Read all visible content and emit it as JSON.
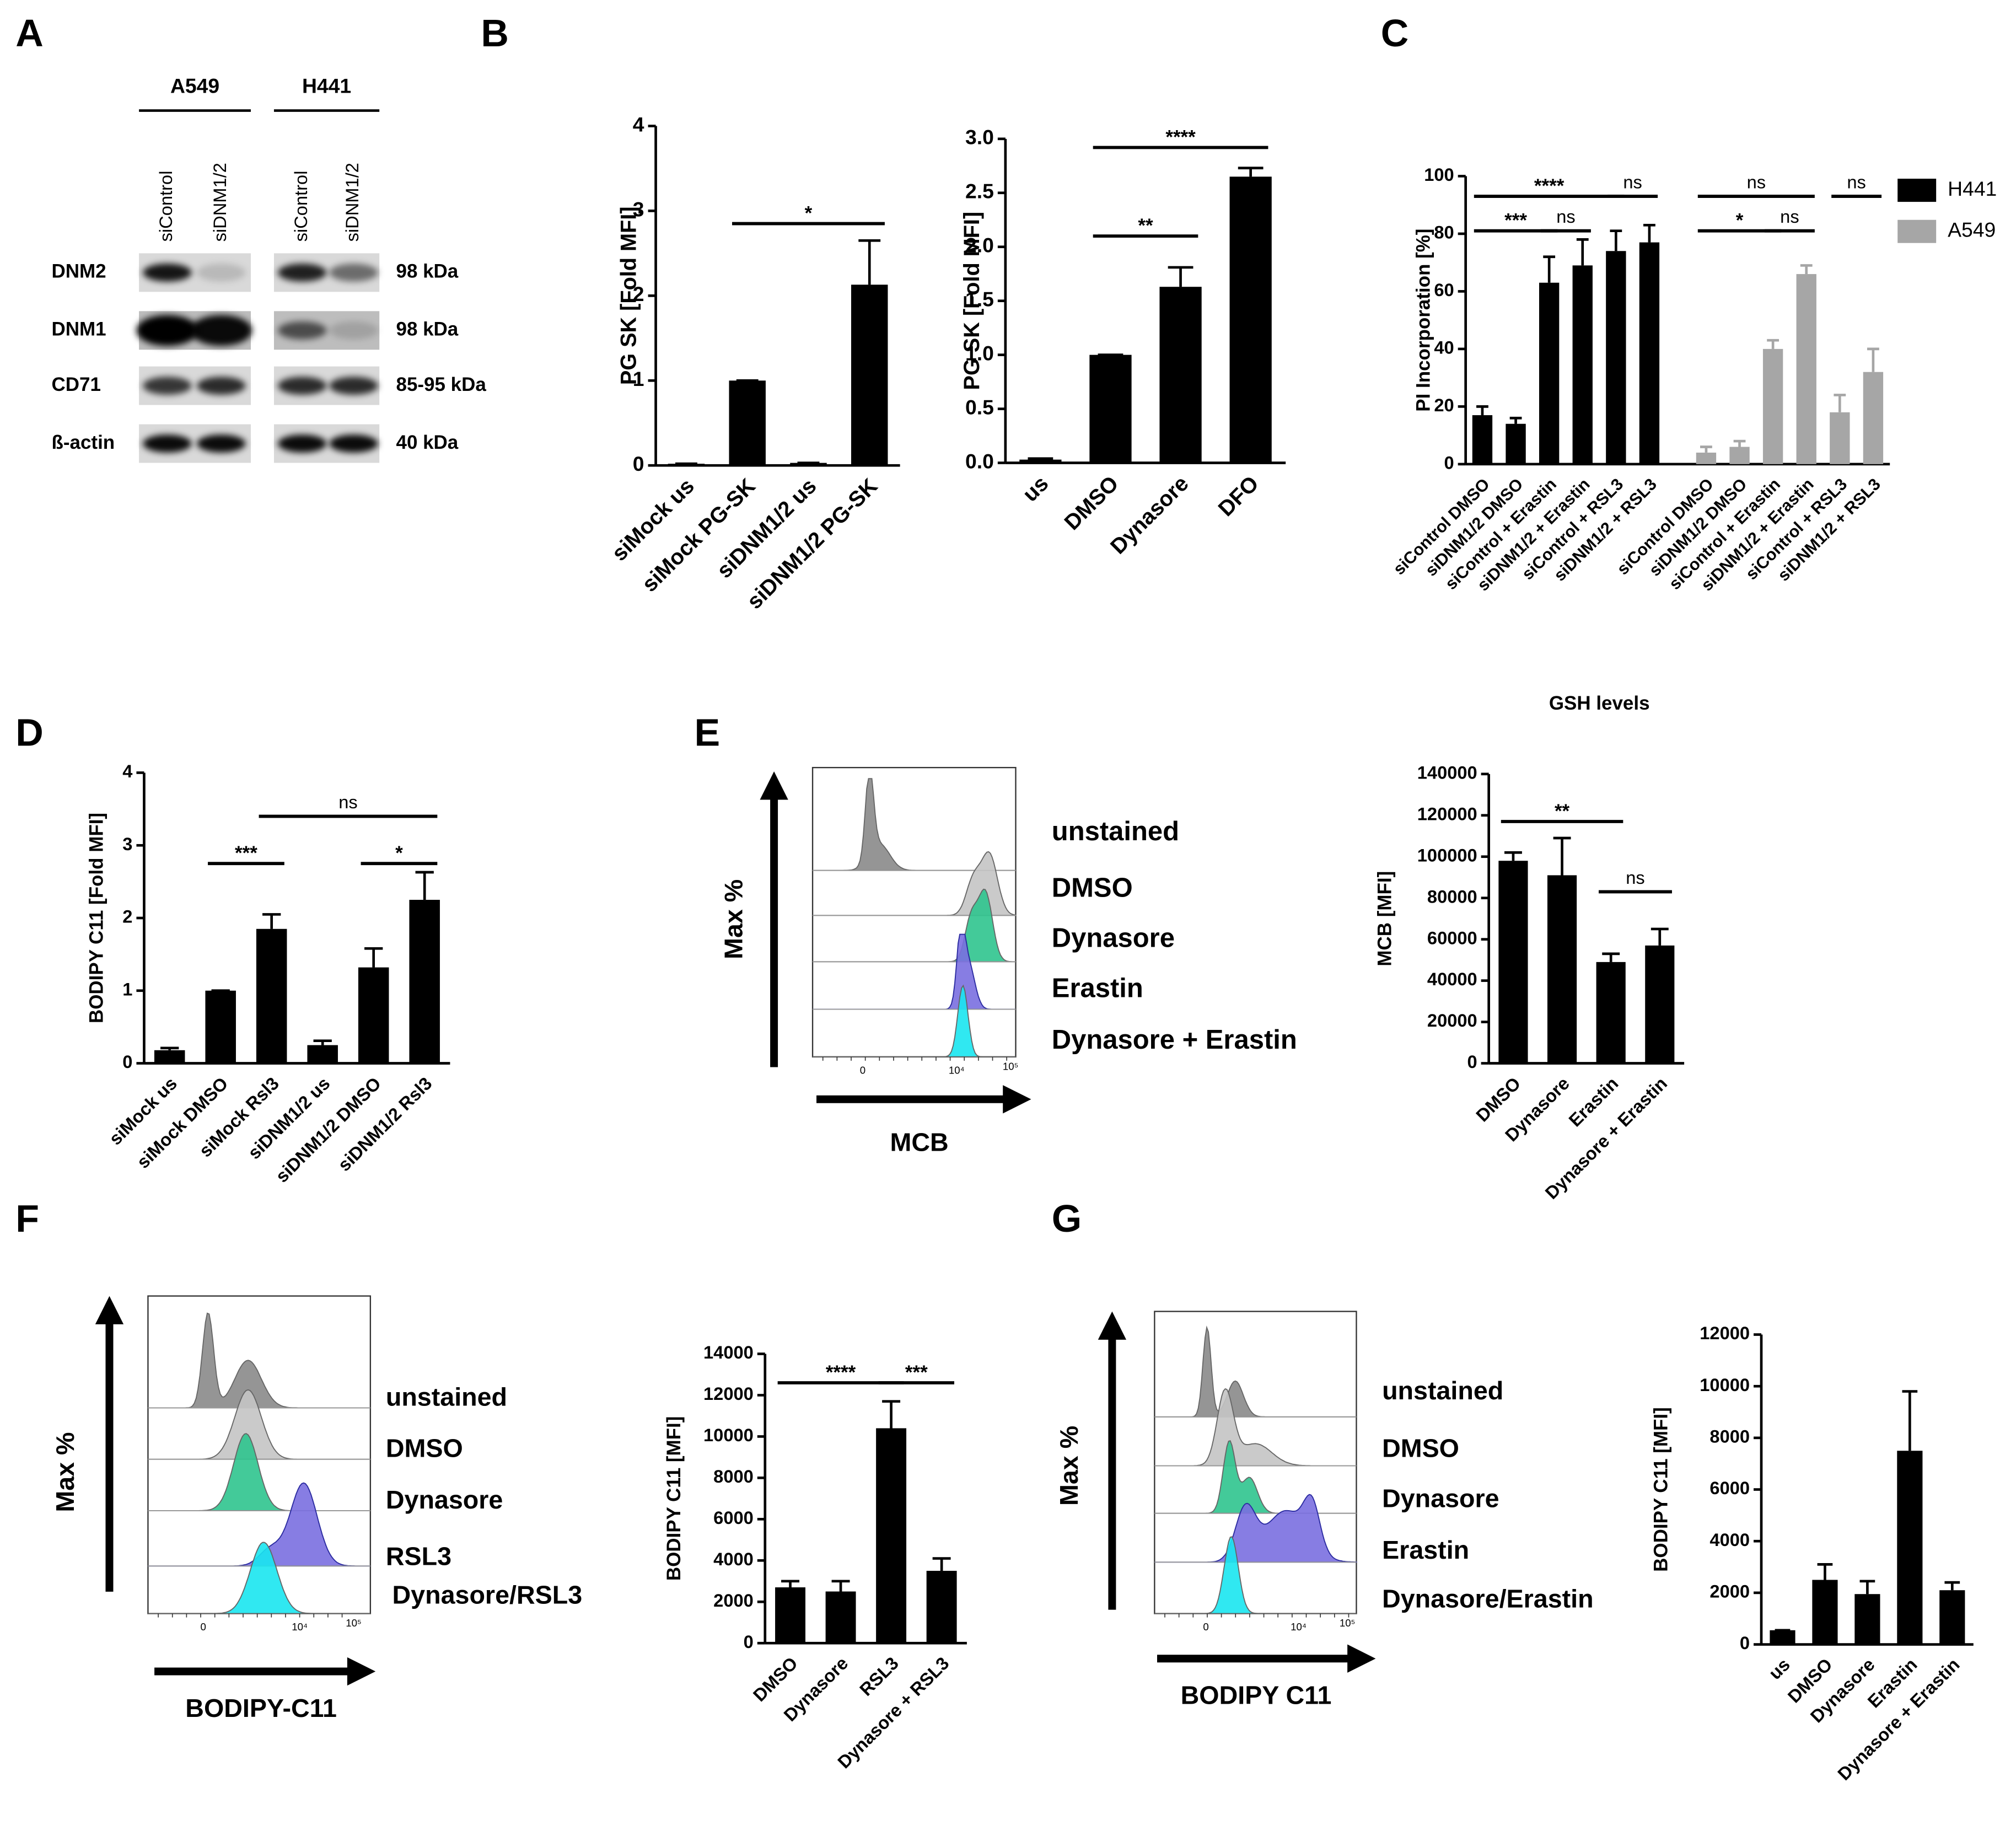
{
  "panel_labels": [
    "A",
    "B",
    "C",
    "D",
    "E",
    "F",
    "G"
  ],
  "blot": {
    "cell_lines": [
      "A549",
      "H441"
    ],
    "lanes": [
      "siControl",
      "siDNM1/2",
      "siControl",
      "siDNM1/2"
    ],
    "proteins": [
      "DNM2",
      "DNM1",
      "CD71",
      "ß-actin"
    ],
    "sizes": [
      "98 kDa",
      "98 kDa",
      "85-95 kDa",
      "40 kDa"
    ]
  },
  "histograms": [
    {
      "legend": [
        "unstained",
        "DMSO",
        "Dynasore",
        "Erastin",
        "Dynasore + Erastin"
      ],
      "colors": [
        "#8a8a8a",
        "#c4c4c4",
        "#2fc48e",
        "#7a6fe0",
        "#19e6f0"
      ],
      "y_label": "Max %",
      "x_label": "MCB",
      "x_tick_labels": [
        "0",
        "10⁴",
        "10⁵"
      ]
    },
    {
      "legend": [
        "unstained",
        "DMSO",
        "Dynasore",
        "RSL3",
        "Dynasore/RSL3"
      ],
      "colors": [
        "#8a8a8a",
        "#c4c4c4",
        "#2fc48e",
        "#7a6fe0",
        "#19e6f0"
      ],
      "y_label": "Max %",
      "x_label": "BODIPY-C11",
      "x_tick_labels": [
        "0",
        "10⁴",
        "10⁵"
      ]
    },
    {
      "legend": [
        "unstained",
        "DMSO",
        "Dynasore",
        "Erastin",
        "Dynasore/Erastin"
      ],
      "colors": [
        "#8a8a8a",
        "#c4c4c4",
        "#2fc48e",
        "#7a6fe0",
        "#19e6f0"
      ],
      "y_label": "Max %",
      "x_label": "BODIPY C11",
      "x_tick_labels": [
        "0",
        "10⁴",
        "10⁵"
      ]
    }
  ],
  "chart_data": [
    {
      "type": "bar",
      "y_label": "PG SK [Fold MFI]",
      "categories": [
        "siMock us",
        "siMock PG-SK",
        "siDNM1/2 us",
        "siDNM1/2 PG-SK"
      ],
      "values": [
        0.02,
        1,
        0.03,
        2.13
      ],
      "errors": [
        0,
        0,
        0,
        0.52
      ],
      "color": "#000000",
      "ylim": [
        0,
        4
      ],
      "yticks": [
        0,
        1,
        2,
        3,
        4
      ],
      "annotations": [
        {
          "text": "*",
          "from": 1,
          "to": 3,
          "y": 2.85
        }
      ]
    },
    {
      "type": "bar",
      "y_label": "PG SK [Fold MFI]",
      "categories": [
        "us",
        "DMSO",
        "Dynasore",
        "DFO"
      ],
      "values": [
        0.03,
        1,
        1.63,
        2.65
      ],
      "errors": [
        0.01,
        0,
        0.18,
        0.08
      ],
      "color": "#000000",
      "ylim": [
        0,
        3
      ],
      "yticks": [
        {
          "value": 0,
          "label": "0.0"
        },
        0.5,
        {
          "value": 1,
          "label": "1.0"
        },
        1.5,
        {
          "value": 2,
          "label": "2.0"
        },
        2.5,
        {
          "value": 3,
          "label": "3.0"
        }
      ],
      "annotations": [
        {
          "text": "**",
          "from": 1,
          "to": 2,
          "y": 2.1
        },
        {
          "text": "****",
          "from": 1,
          "to": 3,
          "y": 2.92
        }
      ]
    },
    {
      "type": "bar",
      "y_label": "PI Incorporation [%]",
      "categories": [
        "siControl  DMSO",
        "siDNM1/2 DMSO",
        "siControl + Erastin",
        "siDNM1/2 + Erastin",
        "siControl + RSL3",
        "siDNM1/2 + RSL3",
        "siControl  DMSO",
        "siDNM1/2 DMSO",
        "siControl + Erastin",
        "siDNM1/2 + Erastin",
        "siControl + RSL3",
        "siDNM1/2 + RSL3"
      ],
      "series": [
        {
          "name": "H441",
          "color": "#000000",
          "values": [
            17,
            14,
            63,
            69,
            74,
            77,
            null,
            null,
            null,
            null,
            null,
            null
          ],
          "errors": [
            3,
            2,
            9,
            9,
            7,
            6,
            null,
            null,
            null,
            null,
            null,
            null
          ]
        },
        {
          "name": "A549",
          "color": "#a6a6a6",
          "values": [
            null,
            null,
            null,
            null,
            null,
            null,
            4,
            6,
            40,
            66,
            18,
            32
          ],
          "errors": [
            null,
            null,
            null,
            null,
            null,
            null,
            2,
            2,
            3,
            3,
            6,
            8
          ]
        }
      ],
      "ylim": [
        0,
        100
      ],
      "yticks": [
        0,
        20,
        40,
        60,
        80,
        100
      ],
      "legend": "right",
      "annotations": [
        {
          "text": "***",
          "from": 0,
          "to": 2,
          "y": 81
        },
        {
          "text": "ns",
          "from": 2,
          "to": 3,
          "y": 81
        },
        {
          "text": "****",
          "from": 0,
          "to": 4,
          "y": 93
        },
        {
          "text": "ns",
          "from": 4,
          "to": 5,
          "y": 93
        },
        {
          "text": "*",
          "from": 6,
          "to": 8,
          "y": 81
        },
        {
          "text": "ns",
          "from": 8,
          "to": 9,
          "y": 81
        },
        {
          "text": "ns",
          "from": 6,
          "to": 9,
          "y": 93
        },
        {
          "text": "ns",
          "from": 10,
          "to": 11,
          "y": 93
        }
      ]
    },
    {
      "type": "bar",
      "y_label": "BODIPY C11  [Fold MFI]",
      "categories": [
        "siMock us",
        "siMock DMSO",
        "siMock Rsl3",
        "siDNM1/2 us",
        "siDNM1/2 DMSO",
        "siDNM1/2 Rsl3"
      ],
      "values": [
        0.18,
        1,
        1.85,
        0.25,
        1.32,
        2.25
      ],
      "errors": [
        0.03,
        0,
        0.2,
        0.06,
        0.26,
        0.38
      ],
      "color": "#000000",
      "ylim": [
        0,
        4
      ],
      "yticks": [
        0,
        1,
        2,
        3,
        4
      ],
      "annotations": [
        {
          "text": "***",
          "from": 1,
          "to": 2,
          "y": 2.75
        },
        {
          "text": "*",
          "from": 4,
          "to": 5,
          "y": 2.75
        },
        {
          "text": "ns",
          "from": 2,
          "to": 5,
          "y": 3.4
        }
      ]
    },
    {
      "type": "bar",
      "title": "GSH levels",
      "y_label": "MCB  [MFI]",
      "categories": [
        "DMSO",
        "Dynasore",
        "Erastin",
        "Dynasore + Erastin"
      ],
      "values": [
        98000,
        91000,
        49000,
        57000
      ],
      "errors": [
        4000,
        18000,
        4000,
        8000
      ],
      "color": "#000000",
      "ylim": [
        0,
        140000
      ],
      "yticks": [
        0,
        20000,
        40000,
        60000,
        80000,
        100000,
        120000,
        140000
      ],
      "annotations": [
        {
          "text": "**",
          "from": 0,
          "to": 2,
          "y": 117000
        },
        {
          "text": "ns",
          "from": 2,
          "to": 3,
          "y": 83000
        }
      ]
    },
    {
      "type": "bar",
      "y_label": "BODIPY C11  [MFI]",
      "categories": [
        "DMSO",
        "Dynasore",
        "RSL3",
        "Dynasore + RSL3"
      ],
      "values": [
        2700,
        2500,
        10400,
        3500
      ],
      "errors": [
        300,
        500,
        1300,
        600
      ],
      "color": "#000000",
      "ylim": [
        0,
        14000
      ],
      "yticks": [
        0,
        2000,
        4000,
        6000,
        8000,
        10000,
        12000,
        14000
      ],
      "annotations": [
        {
          "text": "****",
          "from": 0,
          "to": 2,
          "y": 12600
        },
        {
          "text": "***",
          "from": 2,
          "to": 3,
          "y": 12600
        }
      ]
    },
    {
      "type": "bar",
      "y_label": "BODIPY C11  [MFI]",
      "categories": [
        "us",
        "DMSO",
        "Dynasore",
        "Erastin",
        "Dynasore + Erastin"
      ],
      "values": [
        550,
        2500,
        1950,
        7500,
        2100
      ],
      "errors": [
        0,
        600,
        500,
        2300,
        300
      ],
      "color": "#000000",
      "ylim": [
        0,
        12000
      ],
      "yticks": [
        0,
        2000,
        4000,
        6000,
        8000,
        10000,
        12000
      ]
    }
  ]
}
